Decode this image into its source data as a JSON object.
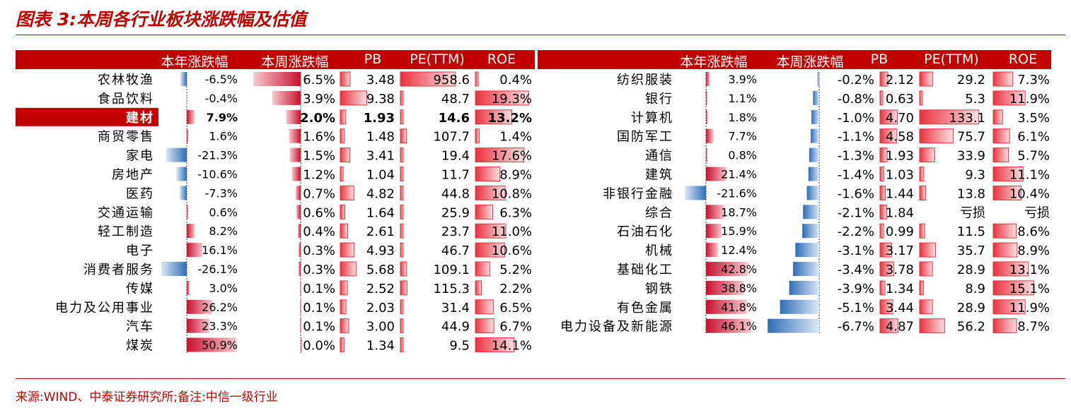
{
  "title": "图表 3:本周各行业板块涨跌幅及估值",
  "source": "来源:WIND、中泰证券研究所;备注:中信一级行业",
  "chart_data": [
    {
      "type": "table",
      "columns": [
        "本年涨跌幅",
        "本周涨跌幅",
        "PB",
        "PE(TTM)",
        "ROE"
      ],
      "highlight_row": "建材",
      "rows": [
        {
          "name": "农林牧渔",
          "ytd": "-6.5%",
          "wk": "6.5%",
          "pb": "3.48",
          "pe": "958.6",
          "roe": "0.4%"
        },
        {
          "name": "食品饮料",
          "ytd": "-0.4%",
          "wk": "3.9%",
          "pb": "9.38",
          "pe": "48.7",
          "roe": "19.3%"
        },
        {
          "name": "建材",
          "ytd": "7.9%",
          "wk": "2.0%",
          "pb": "1.93",
          "pe": "14.6",
          "roe": "13.2%"
        },
        {
          "name": "商贸零售",
          "ytd": "1.6%",
          "wk": "1.6%",
          "pb": "1.48",
          "pe": "107.7",
          "roe": "1.4%"
        },
        {
          "name": "家电",
          "ytd": "-21.3%",
          "wk": "1.5%",
          "pb": "3.41",
          "pe": "19.4",
          "roe": "17.6%"
        },
        {
          "name": "房地产",
          "ytd": "-10.6%",
          "wk": "1.2%",
          "pb": "1.04",
          "pe": "11.7",
          "roe": "8.9%"
        },
        {
          "name": "医药",
          "ytd": "-7.3%",
          "wk": "0.7%",
          "pb": "4.82",
          "pe": "44.8",
          "roe": "10.8%"
        },
        {
          "name": "交通运输",
          "ytd": "0.6%",
          "wk": "0.6%",
          "pb": "1.64",
          "pe": "25.9",
          "roe": "6.3%"
        },
        {
          "name": "轻工制造",
          "ytd": "8.2%",
          "wk": "0.4%",
          "pb": "2.61",
          "pe": "23.7",
          "roe": "11.0%"
        },
        {
          "name": "电子",
          "ytd": "16.1%",
          "wk": "0.3%",
          "pb": "4.93",
          "pe": "46.7",
          "roe": "10.6%"
        },
        {
          "name": "消费者服务",
          "ytd": "-26.1%",
          "wk": "0.3%",
          "pb": "5.68",
          "pe": "109.1",
          "roe": "5.2%"
        },
        {
          "name": "传媒",
          "ytd": "3.0%",
          "wk": "0.1%",
          "pb": "2.52",
          "pe": "115.3",
          "roe": "2.2%"
        },
        {
          "name": "电力及公用事业",
          "ytd": "26.2%",
          "wk": "0.1%",
          "pb": "2.03",
          "pe": "31.4",
          "roe": "6.5%"
        },
        {
          "name": "汽车",
          "ytd": "23.3%",
          "wk": "0.1%",
          "pb": "3.00",
          "pe": "44.9",
          "roe": "6.7%"
        },
        {
          "name": "煤炭",
          "ytd": "50.9%",
          "wk": "0.0%",
          "pb": "1.34",
          "pe": "9.5",
          "roe": "14.1%"
        }
      ]
    },
    {
      "type": "table",
      "columns": [
        "本年涨跌幅",
        "本周涨跌幅",
        "PB",
        "PE(TTM)",
        "ROE"
      ],
      "rows": [
        {
          "name": "纺织服装",
          "ytd": "3.9%",
          "wk": "-0.2%",
          "pb": "2.12",
          "pe": "29.2",
          "roe": "7.3%"
        },
        {
          "name": "银行",
          "ytd": "1.1%",
          "wk": "-0.8%",
          "pb": "0.63",
          "pe": "5.3",
          "roe": "11.9%"
        },
        {
          "name": "计算机",
          "ytd": "1.8%",
          "wk": "-1.0%",
          "pb": "4.70",
          "pe": "133.1",
          "roe": "3.5%"
        },
        {
          "name": "国防军工",
          "ytd": "7.7%",
          "wk": "-1.1%",
          "pb": "4.58",
          "pe": "75.7",
          "roe": "6.1%"
        },
        {
          "name": "通信",
          "ytd": "0.8%",
          "wk": "-1.3%",
          "pb": "1.93",
          "pe": "33.9",
          "roe": "5.7%"
        },
        {
          "name": "建筑",
          "ytd": "21.4%",
          "wk": "-1.4%",
          "pb": "1.03",
          "pe": "9.3",
          "roe": "11.1%"
        },
        {
          "name": "非银行金融",
          "ytd": "-21.6%",
          "wk": "-1.6%",
          "pb": "1.44",
          "pe": "13.8",
          "roe": "10.4%"
        },
        {
          "name": "综合",
          "ytd": "18.7%",
          "wk": "-2.1%",
          "pb": "1.84",
          "pe": "亏损",
          "roe": "亏损"
        },
        {
          "name": "石油石化",
          "ytd": "15.9%",
          "wk": "-2.2%",
          "pb": "0.99",
          "pe": "11.5",
          "roe": "8.6%"
        },
        {
          "name": "机械",
          "ytd": "12.4%",
          "wk": "-3.1%",
          "pb": "3.17",
          "pe": "35.7",
          "roe": "8.9%"
        },
        {
          "name": "基础化工",
          "ytd": "42.8%",
          "wk": "-3.4%",
          "pb": "3.78",
          "pe": "28.9",
          "roe": "13.1%"
        },
        {
          "name": "钢铁",
          "ytd": "38.8%",
          "wk": "-3.9%",
          "pb": "1.34",
          "pe": "8.9",
          "roe": "15.1%"
        },
        {
          "name": "有色金属",
          "ytd": "41.8%",
          "wk": "-5.1%",
          "pb": "3.44",
          "pe": "28.9",
          "roe": "11.9%"
        },
        {
          "name": "电力设备及新能源",
          "ytd": "46.1%",
          "wk": "-6.7%",
          "pb": "4.87",
          "pe": "56.2",
          "roe": "8.7%"
        }
      ]
    }
  ]
}
